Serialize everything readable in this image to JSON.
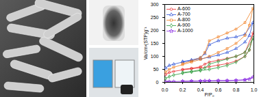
{
  "chart_data": {
    "type": "line",
    "x_label": "P/P₀",
    "y_label": "Va/cm³(STP)g⁻¹",
    "xlim": [
      0,
      1
    ],
    "xticks": [
      {
        "value": 0,
        "label": "0.0"
      },
      0.2,
      0.4,
      0.6,
      0.8,
      {
        "value": 1,
        "label": "1.0"
      }
    ],
    "ylim": [
      0,
      300
    ],
    "yticks": [
      0,
      50,
      100,
      150,
      200,
      250,
      300
    ],
    "legend": "top-left",
    "series": [
      {
        "name": "A-600",
        "color": "#e8262a",
        "marker": "circle",
        "x": [
          0.01,
          0.05,
          0.1,
          0.2,
          0.3,
          0.4,
          0.5,
          0.6,
          0.7,
          0.8,
          0.9,
          0.95,
          0.99,
          0.9,
          0.8,
          0.7,
          0.6,
          0.5,
          0.45,
          0.4,
          0.3,
          0.2
        ],
        "values": [
          30,
          38,
          42,
          48,
          52,
          56,
          60,
          66,
          72,
          82,
          100,
          125,
          190,
          115,
          100,
          92,
          85,
          78,
          70,
          60,
          54,
          50
        ]
      },
      {
        "name": "A-700",
        "color": "#2a4fd6",
        "marker": "triangle",
        "x": [
          0.01,
          0.05,
          0.1,
          0.2,
          0.3,
          0.4,
          0.5,
          0.6,
          0.7,
          0.8,
          0.9,
          0.95,
          0.99,
          0.9,
          0.8,
          0.7,
          0.6,
          0.5,
          0.45,
          0.4,
          0.3,
          0.2
        ],
        "values": [
          55,
          65,
          70,
          78,
          84,
          90,
          97,
          105,
          115,
          130,
          155,
          180,
          230,
          185,
          175,
          170,
          160,
          145,
          110,
          95,
          86,
          80
        ]
      },
      {
        "name": "A-800",
        "color": "#f07c1e",
        "marker": "square",
        "x": [
          0.01,
          0.05,
          0.1,
          0.2,
          0.3,
          0.4,
          0.5,
          0.6,
          0.7,
          0.8,
          0.9,
          0.95,
          0.99,
          0.9,
          0.8,
          0.7,
          0.6,
          0.5,
          0.45,
          0.4,
          0.3,
          0.2
        ],
        "values": [
          40,
          50,
          58,
          68,
          78,
          88,
          100,
          115,
          130,
          150,
          180,
          220,
          285,
          230,
          205,
          190,
          175,
          160,
          115,
          95,
          82,
          72
        ]
      },
      {
        "name": "A-900",
        "color": "#2a9a3a",
        "marker": "diamond",
        "x": [
          0.01,
          0.05,
          0.1,
          0.2,
          0.3,
          0.4,
          0.5,
          0.6,
          0.7,
          0.8,
          0.9,
          0.95,
          0.99,
          0.9,
          0.8,
          0.7,
          0.6,
          0.5,
          0.45,
          0.4,
          0.3,
          0.2
        ],
        "values": [
          15,
          22,
          28,
          35,
          40,
          45,
          50,
          57,
          65,
          78,
          100,
          125,
          170,
          115,
          100,
          90,
          80,
          70,
          55,
          48,
          42,
          38
        ]
      },
      {
        "name": "A-1000",
        "color": "#8a2be2",
        "marker": "star",
        "x": [
          0.01,
          0.05,
          0.1,
          0.2,
          0.3,
          0.4,
          0.5,
          0.6,
          0.7,
          0.8,
          0.9,
          0.95,
          0.99,
          0.9,
          0.8,
          0.7,
          0.6,
          0.5,
          0.45,
          0.4,
          0.3,
          0.2
        ],
        "values": [
          2,
          3,
          3,
          4,
          4,
          5,
          5,
          6,
          6,
          7,
          9,
          12,
          20,
          10,
          8,
          7,
          7,
          6,
          6,
          5,
          5,
          4
        ]
      }
    ]
  }
}
